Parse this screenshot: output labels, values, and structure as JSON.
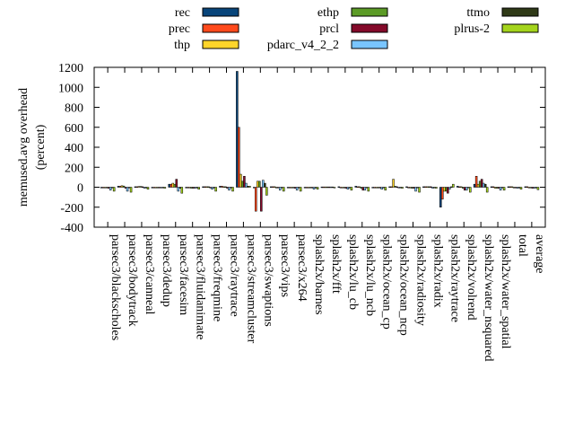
{
  "chart_data": {
    "type": "bar",
    "ylabel": "memused.avg overhead\n(percent)",
    "ylim": [
      -400,
      1200
    ],
    "yticks": [
      -400,
      -200,
      0,
      200,
      400,
      600,
      800,
      1000,
      1200
    ],
    "grid": false,
    "legend_position": "top",
    "categories": [
      "parsec3/blackscholes",
      "parsec3/bodytrack",
      "parsec3/canneal",
      "parsec3/dedup",
      "parsec3/facesim",
      "parsec3/fluidanimate",
      "parsec3/freqmine",
      "parsec3/raytrace",
      "parsec3/streamcluster",
      "parsec3/swaptions",
      "parsec3/vips",
      "parsec3/x264",
      "splash2x/barnes",
      "splash2x/fft",
      "splash2x/lu_cb",
      "splash2x/lu_ncb",
      "splash2x/ocean_cp",
      "splash2x/ocean_ncp",
      "splash2x/radiosity",
      "splash2x/radix",
      "splash2x/raytrace",
      "splash2x/volrend",
      "splash2x/water_nsquared",
      "splash2x/water_spatial",
      "total",
      "average"
    ],
    "series": [
      {
        "name": "rec",
        "color": "#08457a",
        "values": [
          -5,
          10,
          5,
          -3,
          30,
          -5,
          5,
          10,
          1160,
          -5,
          5,
          -5,
          -5,
          3,
          5,
          10,
          -5,
          5,
          5,
          5,
          -200,
          10,
          30,
          5,
          5,
          5
        ]
      },
      {
        "name": "prec",
        "color": "#ff4a1c",
        "values": [
          -5,
          10,
          5,
          -3,
          30,
          -5,
          5,
          10,
          600,
          -240,
          5,
          -5,
          -5,
          3,
          -5,
          5,
          -5,
          5,
          -5,
          5,
          -120,
          5,
          110,
          5,
          5,
          5
        ]
      },
      {
        "name": "thp",
        "color": "#ffd52a",
        "values": [
          -5,
          15,
          8,
          -3,
          40,
          -5,
          5,
          5,
          130,
          60,
          5,
          -5,
          -5,
          3,
          -5,
          5,
          -5,
          80,
          -5,
          5,
          -40,
          5,
          30,
          -10,
          5,
          -5
        ]
      },
      {
        "name": "ethp",
        "color": "#5b9b26",
        "values": [
          -5,
          12,
          8,
          -3,
          30,
          -10,
          5,
          5,
          60,
          60,
          -5,
          -5,
          -5,
          3,
          -5,
          -10,
          -5,
          10,
          -10,
          5,
          -40,
          -10,
          60,
          -10,
          -5,
          -5
        ]
      },
      {
        "name": "prcl",
        "color": "#840a2a",
        "values": [
          -10,
          -10,
          5,
          -3,
          80,
          -10,
          -5,
          -10,
          110,
          -240,
          -5,
          -10,
          -5,
          3,
          -10,
          -30,
          -5,
          5,
          -10,
          5,
          -60,
          -30,
          80,
          -10,
          -5,
          -10
        ]
      },
      {
        "name": "pdarc_v4_2_2",
        "color": "#79c5ff",
        "values": [
          -30,
          -40,
          -10,
          -5,
          -40,
          -10,
          -20,
          -30,
          40,
          70,
          -30,
          -30,
          -20,
          3,
          -20,
          -30,
          -20,
          -5,
          -40,
          -10,
          -20,
          -30,
          40,
          -30,
          -10,
          -10
        ]
      },
      {
        "name": "ttmo",
        "color": "#2f3a17",
        "values": [
          -5,
          -5,
          -3,
          -3,
          -10,
          -5,
          -5,
          -5,
          10,
          40,
          -5,
          -5,
          -5,
          3,
          -5,
          -5,
          -5,
          -5,
          -5,
          -5,
          5,
          -5,
          30,
          -5,
          -5,
          -5
        ]
      },
      {
        "name": "plrus-2",
        "color": "#a4d41c",
        "values": [
          -40,
          -50,
          -20,
          -10,
          -60,
          -20,
          -40,
          -40,
          10,
          -80,
          -40,
          -40,
          -20,
          -5,
          -30,
          -40,
          -30,
          -10,
          -50,
          -10,
          30,
          -50,
          -50,
          -30,
          -20,
          -25
        ]
      }
    ]
  }
}
